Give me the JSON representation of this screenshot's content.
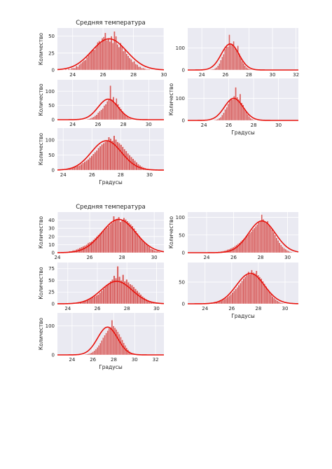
{
  "colors": {
    "panel_bg": "#eaeaf2",
    "grid": "#ffffff",
    "bar_fill": "#d65f5f",
    "bar_stroke": "#ffffff",
    "curve": "#e8120c",
    "text": "#222222"
  },
  "chart_data": [
    {
      "type": "histogram",
      "figure": "top",
      "title": "Средняя температура",
      "ylabel": "Количество",
      "xlabel": "",
      "grid": true,
      "xticks": [
        24,
        26,
        28,
        30
      ],
      "yticks": [
        0,
        25,
        50
      ],
      "xlim": [
        23.0,
        30.0
      ],
      "ylim": [
        0,
        62
      ],
      "curve": {
        "mean": 26.4,
        "sd": 1.15,
        "peak": 46
      },
      "values": [
        1,
        0,
        2,
        1,
        3,
        3,
        3,
        6,
        5,
        8,
        10,
        12,
        14,
        15,
        19,
        22,
        25,
        29,
        31,
        30,
        36,
        41,
        43,
        40,
        47,
        49,
        55,
        44,
        47,
        42,
        50,
        40,
        57,
        50,
        38,
        34,
        40,
        36,
        28,
        31,
        24,
        21,
        18,
        16,
        12,
        13,
        9,
        8,
        5,
        5,
        3,
        3,
        2,
        1,
        1,
        1
      ],
      "bin_start": 23.5,
      "bin_width": 0.1
    },
    {
      "type": "histogram",
      "figure": "top",
      "ylabel": "",
      "xlabel": "",
      "grid": true,
      "xticks": [
        24,
        26,
        28,
        30,
        32
      ],
      "yticks": [
        0,
        100
      ],
      "xlim": [
        22.8,
        32.2
      ],
      "ylim": [
        0,
        190
      ],
      "curve": {
        "mean": 26.4,
        "sd": 0.75,
        "peak": 118
      },
      "values": [
        1,
        2,
        3,
        4,
        8,
        12,
        20,
        30,
        45,
        60,
        72,
        95,
        110,
        105,
        160,
        120,
        118,
        130,
        100,
        90,
        110,
        75,
        55,
        40,
        30,
        20,
        12,
        8,
        5,
        3,
        2,
        1
      ],
      "bin_start": 24.6,
      "bin_width": 0.12
    },
    {
      "type": "histogram",
      "figure": "top",
      "ylabel": "Количество",
      "xlabel": "",
      "grid": true,
      "xticks": [
        24,
        26,
        28,
        30
      ],
      "yticks": [
        0,
        50,
        100
      ],
      "xlim": [
        22.8,
        31.2
      ],
      "ylim": [
        0,
        140
      ],
      "curve": {
        "mean": 26.8,
        "sd": 0.8,
        "peak": 72
      },
      "values": [
        1,
        2,
        3,
        5,
        8,
        10,
        14,
        18,
        25,
        30,
        35,
        40,
        50,
        55,
        65,
        70,
        120,
        72,
        80,
        60,
        75,
        55,
        45,
        38,
        30,
        22,
        15,
        10,
        6,
        4,
        2,
        1
      ],
      "bin_start": 25.0,
      "bin_width": 0.12
    },
    {
      "type": "histogram",
      "figure": "top",
      "ylabel": "Количество",
      "xlabel": "Градусы",
      "grid": true,
      "xticks": [
        24,
        26,
        28,
        30
      ],
      "yticks": [
        0,
        100
      ],
      "xlim": [
        22.7,
        31.6
      ],
      "ylim": [
        0,
        190
      ],
      "curve": {
        "mean": 26.4,
        "sd": 0.75,
        "peak": 100
      },
      "values": [
        1,
        2,
        4,
        6,
        10,
        15,
        25,
        35,
        50,
        60,
        75,
        90,
        100,
        95,
        110,
        150,
        105,
        95,
        120,
        80,
        70,
        55,
        40,
        28,
        18,
        10,
        6,
        3,
        2,
        1
      ],
      "bin_start": 24.7,
      "bin_width": 0.12
    },
    {
      "type": "histogram",
      "figure": "top",
      "ylabel": "Количество",
      "xlabel": "Градусы",
      "grid": true,
      "xticks": [
        24,
        26,
        28,
        30
      ],
      "yticks": [
        0,
        50,
        100
      ],
      "xlim": [
        23.6,
        31.0
      ],
      "ylim": [
        0,
        140
      ],
      "curve": {
        "mean": 27.0,
        "sd": 1.05,
        "peak": 98
      },
      "values": [
        2,
        3,
        4,
        6,
        8,
        9,
        10,
        12,
        14,
        16,
        20,
        24,
        28,
        32,
        36,
        42,
        48,
        54,
        60,
        66,
        74,
        80,
        86,
        90,
        95,
        100,
        110,
        105,
        98,
        115,
        102,
        94,
        90,
        85,
        78,
        70,
        64,
        56,
        50,
        44,
        38,
        32,
        26,
        20,
        16,
        12,
        9,
        7,
        5,
        4,
        3,
        2,
        2,
        1
      ],
      "bin_start": 24.0,
      "bin_width": 0.12
    },
    {
      "type": "histogram",
      "figure": "bottom",
      "title": "Средняя температура",
      "ylabel": "Количество",
      "xlabel": "",
      "grid": true,
      "xticks": [
        24,
        26,
        28,
        30
      ],
      "yticks": [
        0,
        10,
        20,
        30,
        40
      ],
      "xlim": [
        24.0,
        30.6
      ],
      "ylim": [
        0,
        50
      ],
      "curve": {
        "mean": 27.8,
        "sd": 1.05,
        "peak": 41
      },
      "values": [
        1,
        1,
        2,
        2,
        3,
        3,
        4,
        5,
        6,
        7,
        8,
        9,
        10,
        12,
        13,
        14,
        16,
        18,
        20,
        22,
        24,
        26,
        27,
        29,
        31,
        33,
        35,
        37,
        45,
        40,
        42,
        44,
        38,
        40,
        43,
        41,
        39,
        37,
        35,
        33,
        30,
        27,
        24,
        21,
        18,
        16,
        13,
        11,
        9,
        7,
        5,
        4,
        3,
        2,
        2,
        1
      ],
      "bin_start": 24.5,
      "bin_width": 0.105
    },
    {
      "type": "histogram",
      "figure": "bottom",
      "ylabel": "Количество",
      "xlabel": "",
      "grid": true,
      "xticks": [
        24,
        26,
        28,
        30
      ],
      "yticks": [
        0,
        50,
        100
      ],
      "xlim": [
        22.6,
        30.8
      ],
      "ylim": [
        0,
        115
      ],
      "curve": {
        "mean": 28.1,
        "sd": 1.0,
        "peak": 90
      },
      "values": [
        1,
        1,
        2,
        2,
        3,
        3,
        4,
        5,
        6,
        7,
        9,
        10,
        12,
        14,
        16,
        19,
        22,
        25,
        28,
        32,
        36,
        40,
        44,
        48,
        52,
        56,
        60,
        66,
        70,
        75,
        80,
        86,
        90,
        108,
        95,
        88,
        84,
        90,
        80,
        74,
        66,
        58,
        50,
        42,
        35,
        28,
        22,
        17,
        13,
        10,
        7,
        5,
        3,
        2,
        1
      ],
      "bin_start": 24.4,
      "bin_width": 0.11
    },
    {
      "type": "histogram",
      "figure": "bottom",
      "ylabel": "Количество",
      "xlabel": "",
      "grid": true,
      "xticks": [
        24,
        26,
        28,
        30
      ],
      "yticks": [
        0,
        25,
        50,
        75
      ],
      "xlim": [
        23.3,
        30.5
      ],
      "ylim": [
        0,
        88
      ],
      "curve": {
        "mean": 27.3,
        "sd": 1.05,
        "peak": 48
      },
      "values": [
        1,
        1,
        2,
        2,
        3,
        4,
        5,
        6,
        7,
        8,
        10,
        12,
        14,
        16,
        18,
        20,
        24,
        28,
        32,
        36,
        40,
        44,
        48,
        52,
        60,
        55,
        80,
        58,
        50,
        62,
        48,
        52,
        46,
        42,
        40,
        36,
        32,
        28,
        24,
        20,
        16,
        13,
        10,
        8,
        6,
        4,
        3,
        2,
        1
      ],
      "bin_start": 24.2,
      "bin_width": 0.12
    },
    {
      "type": "histogram",
      "figure": "bottom",
      "ylabel": "",
      "xlabel": "Градусы",
      "grid": true,
      "xticks": [
        24,
        26,
        28,
        30
      ],
      "yticks": [
        0,
        50
      ],
      "xlim": [
        22.7,
        31.0
      ],
      "ylim": [
        0,
        95
      ],
      "curve": {
        "mean": 27.4,
        "sd": 1.05,
        "peak": 70
      },
      "values": [
        1,
        1,
        2,
        2,
        3,
        4,
        5,
        6,
        7,
        9,
        11,
        13,
        16,
        19,
        22,
        26,
        30,
        34,
        38,
        43,
        48,
        53,
        58,
        62,
        66,
        74,
        68,
        78,
        72,
        70,
        76,
        66,
        62,
        58,
        52,
        46,
        40,
        34,
        28,
        22,
        17,
        13,
        10,
        7,
        5,
        3,
        2,
        1
      ],
      "bin_start": 24.2,
      "bin_width": 0.12
    },
    {
      "type": "histogram",
      "figure": "bottom",
      "ylabel": "Количество",
      "xlabel": "Градусы",
      "grid": true,
      "xticks": [
        24,
        26,
        28,
        30,
        32
      ],
      "yticks": [
        0,
        100
      ],
      "xlim": [
        22.6,
        32.8
      ],
      "ylim": [
        0,
        145
      ],
      "curve": {
        "mean": 27.4,
        "sd": 0.95,
        "peak": 96
      },
      "values": [
        1,
        2,
        3,
        4,
        6,
        8,
        11,
        15,
        20,
        26,
        33,
        41,
        50,
        60,
        68,
        76,
        84,
        92,
        96,
        120,
        100,
        94,
        88,
        80,
        72,
        62,
        52,
        42,
        33,
        25,
        18,
        12,
        8,
        5,
        3,
        2,
        1
      ],
      "bin_start": 25.1,
      "bin_width": 0.14
    }
  ]
}
